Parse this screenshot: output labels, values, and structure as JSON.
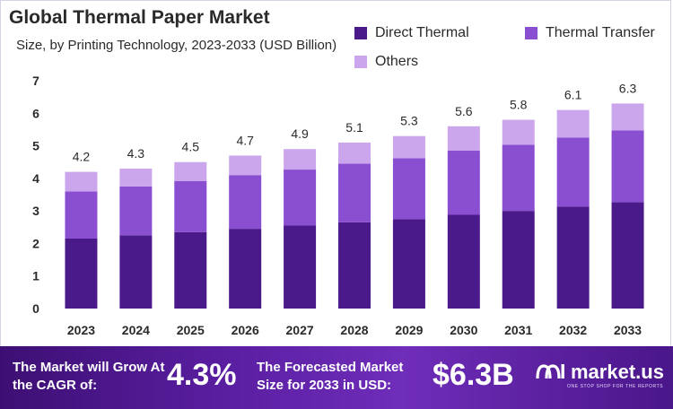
{
  "header": {
    "title": "Global Thermal Paper Market",
    "subtitle": "Size, by Printing Technology, 2023-2033 (USD Billion)"
  },
  "colors": {
    "direct_thermal": "#4a1a8a",
    "thermal_transfer": "#8a4fd0",
    "others": "#cba6ec",
    "axis_text": "#2a2a2a"
  },
  "chart_data": {
    "type": "bar",
    "stacked": true,
    "title": "Global Thermal Paper Market",
    "subtitle": "Size, by Printing Technology, 2023-2033 (USD Billion)",
    "categories": [
      "2023",
      "2024",
      "2025",
      "2026",
      "2027",
      "2028",
      "2029",
      "2030",
      "2031",
      "2032",
      "2033"
    ],
    "series": [
      {
        "name": "Direct Thermal",
        "values": [
          2.15,
          2.25,
          2.35,
          2.45,
          2.55,
          2.65,
          2.75,
          2.88,
          3.0,
          3.13,
          3.27
        ]
      },
      {
        "name": "Thermal Transfer",
        "values": [
          1.45,
          1.5,
          1.57,
          1.65,
          1.72,
          1.8,
          1.87,
          1.97,
          2.03,
          2.12,
          2.2
        ]
      },
      {
        "name": "Others",
        "values": [
          0.6,
          0.55,
          0.58,
          0.6,
          0.63,
          0.65,
          0.68,
          0.75,
          0.77,
          0.85,
          0.83
        ]
      }
    ],
    "totals": [
      "4.2",
      "4.3",
      "4.5",
      "4.7",
      "4.9",
      "5.1",
      "5.3",
      "5.6",
      "5.8",
      "6.1",
      "6.3"
    ],
    "ylim": [
      0,
      7
    ],
    "yticks": [
      "0",
      "1",
      "2",
      "3",
      "4",
      "5",
      "6",
      "7"
    ],
    "grid": false,
    "legend_position": "top-right"
  },
  "footer": {
    "cagr_label": "The Market will Grow At the CAGR of:",
    "cagr_value": "4.3%",
    "forecast_label": "The Forecasted Market Size for 2033 in USD:",
    "forecast_value": "$6.3B",
    "brand_name": "market.us",
    "brand_tagline": "ONE STOP SHOP FOR THE REPORTS",
    "brand_icon": "market-us-logo-icon"
  }
}
